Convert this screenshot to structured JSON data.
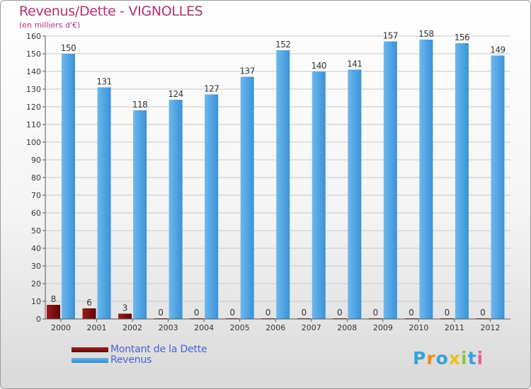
{
  "title": "Revenus/Dette - VIGNOLLES",
  "subtitle": "(en milliers d'€)",
  "logo_text": "Proxiti",
  "colors": {
    "title": "#b5306e",
    "debt": "#7a0f0f",
    "revenue": "#4a9fe0",
    "grid": "#c8c8c8",
    "legend_text": "#4a5fd6"
  },
  "chart_data": {
    "type": "bar",
    "title": "Revenus/Dette - VIGNOLLES",
    "subtitle": "(en milliers d'€)",
    "categories": [
      "2000",
      "2001",
      "2002",
      "2003",
      "2004",
      "2005",
      "2006",
      "2007",
      "2008",
      "2009",
      "2010",
      "2011",
      "2012"
    ],
    "series": [
      {
        "name": "Montant de la Dette",
        "values": [
          8,
          6,
          3,
          0,
          0,
          0,
          0,
          0,
          0,
          0,
          0,
          0,
          0
        ]
      },
      {
        "name": "Revenus",
        "values": [
          150,
          131,
          118,
          124,
          127,
          137,
          152,
          140,
          141,
          157,
          158,
          156,
          149
        ]
      }
    ],
    "ylim": [
      0,
      160
    ],
    "yticks": [
      0,
      10,
      20,
      30,
      40,
      50,
      60,
      70,
      80,
      90,
      100,
      110,
      120,
      130,
      140,
      150,
      160
    ],
    "grid": true,
    "legend_position": "bottom-left"
  }
}
